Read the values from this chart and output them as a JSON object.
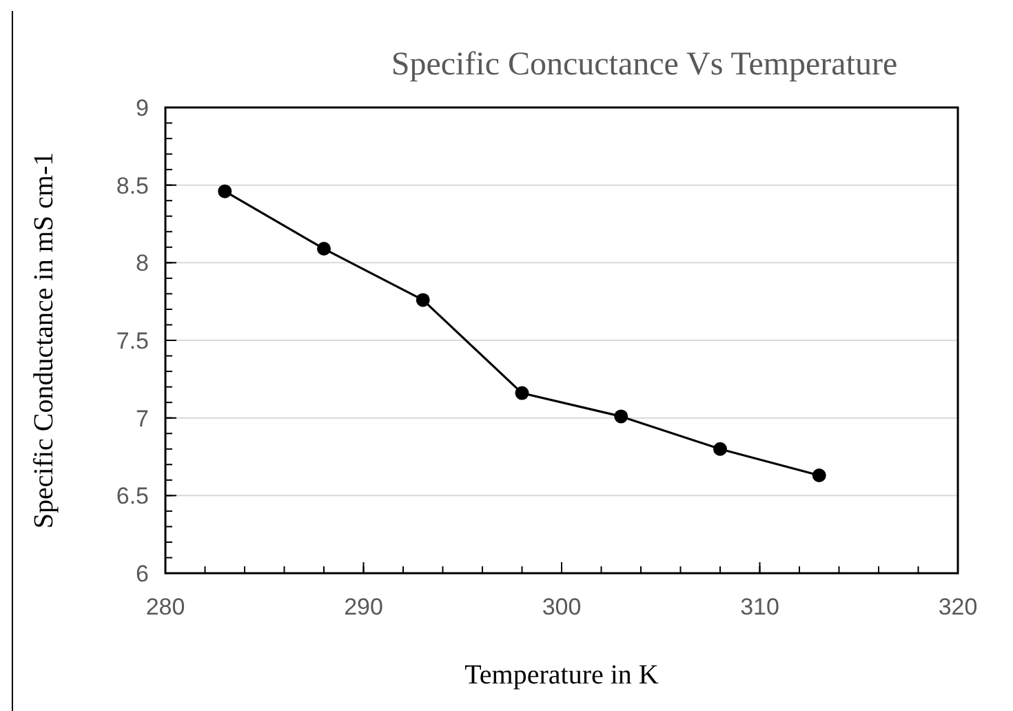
{
  "chart_data": {
    "type": "line",
    "title": "Specific Concuctance Vs Temperature",
    "xlabel": "Temperature in K",
    "ylabel": "Specific Conductance in mS cm-1",
    "x": [
      283,
      288,
      293,
      298,
      303,
      308,
      313
    ],
    "series": [
      {
        "color": "#000000",
        "values": [
          8.46,
          8.09,
          7.76,
          7.16,
          7.01,
          6.8,
          6.63
        ]
      }
    ],
    "xlim": [
      280,
      320
    ],
    "xticks": [
      280,
      290,
      300,
      310,
      320
    ],
    "ylim": [
      6,
      9
    ],
    "yticks": [
      6,
      6.5,
      7,
      7.5,
      8,
      8.5,
      9
    ],
    "grid": "y",
    "marker": "circle",
    "line_style": "solid"
  }
}
